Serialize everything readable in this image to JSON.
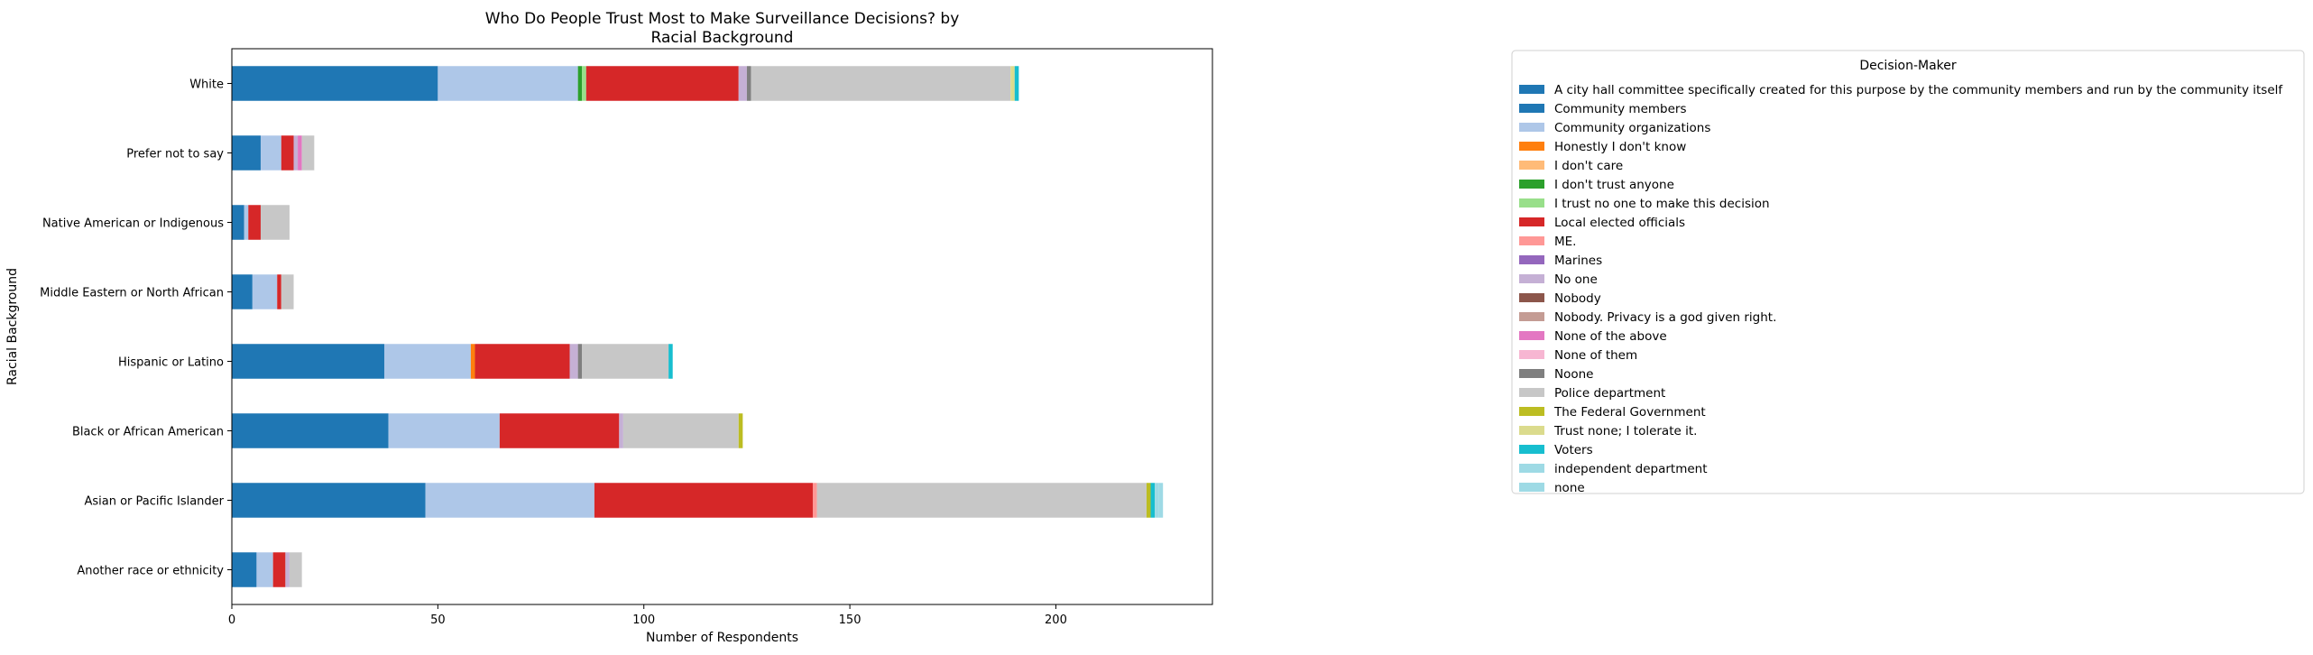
{
  "chart_data": {
    "type": "bar",
    "orientation": "horizontal",
    "stacked": true,
    "title": "Who Do People Trust Most to Make Surveillance Decisions? by\nRacial Background",
    "xlabel": "Number of Respondents",
    "ylabel": "Racial Background",
    "xlim": [
      0,
      238
    ],
    "xticks": [
      0,
      50,
      100,
      150,
      200
    ],
    "grid": false,
    "legend_title": "Decision-Maker",
    "legend_placement": "upper-right-outside",
    "categories": [
      "Another race or ethnicity",
      "Asian or Pacific Islander",
      "Black or African American",
      "Hispanic or Latino",
      "Middle Eastern or North African",
      "Native American or Indigenous",
      "Prefer not to say",
      "White"
    ],
    "series": [
      {
        "name": "A city hall committee specifically created for this purpose by the community members and run by the community itself",
        "color": "#1f77b4",
        "values": [
          0,
          0,
          0,
          0,
          0,
          0,
          0,
          0
        ]
      },
      {
        "name": "Community members",
        "color": "#1f77b4",
        "values": [
          6,
          47,
          38,
          37,
          5,
          3,
          7,
          50
        ]
      },
      {
        "name": "Community organizations",
        "color": "#aec7e8",
        "values": [
          4,
          41,
          27,
          21,
          6,
          1,
          5,
          34
        ]
      },
      {
        "name": "Honestly I don't know",
        "color": "#ff7f0e",
        "values": [
          0,
          0,
          0,
          1,
          0,
          0,
          0,
          0
        ]
      },
      {
        "name": "I don't care",
        "color": "#ffbb78",
        "values": [
          0,
          0,
          0,
          0,
          0,
          0,
          0,
          0
        ]
      },
      {
        "name": "I don't trust anyone",
        "color": "#2ca02c",
        "values": [
          0,
          0,
          0,
          0,
          0,
          0,
          0,
          1
        ]
      },
      {
        "name": "I trust no one to make this decision",
        "color": "#98df8a",
        "values": [
          0,
          0,
          0,
          0,
          0,
          0,
          0,
          1
        ]
      },
      {
        "name": "Local elected officials",
        "color": "#d62728",
        "values": [
          3,
          53,
          29,
          23,
          1,
          3,
          3,
          37
        ]
      },
      {
        "name": "ME.",
        "color": "#ff9896",
        "values": [
          0,
          1,
          0,
          0,
          0,
          0,
          0,
          0
        ]
      },
      {
        "name": "Marines",
        "color": "#9467bd",
        "values": [
          0,
          0,
          0,
          0,
          0,
          0,
          0,
          0
        ]
      },
      {
        "name": "No one",
        "color": "#c5b0d5",
        "values": [
          1,
          0,
          1,
          2,
          0,
          0,
          1,
          2
        ]
      },
      {
        "name": "Nobody",
        "color": "#8c564b",
        "values": [
          0,
          0,
          0,
          0,
          0,
          0,
          0,
          0
        ]
      },
      {
        "name": "Nobody. Privacy is a god given right.",
        "color": "#c49c94",
        "values": [
          0,
          0,
          0,
          0,
          0,
          0,
          0,
          0
        ]
      },
      {
        "name": "None of the above",
        "color": "#e377c2",
        "values": [
          0,
          0,
          0,
          0,
          0,
          0,
          1,
          0
        ]
      },
      {
        "name": "None of them",
        "color": "#f7b6d2",
        "values": [
          0,
          0,
          0,
          0,
          0,
          0,
          0,
          0
        ]
      },
      {
        "name": "Noone",
        "color": "#7f7f7f",
        "values": [
          0,
          0,
          0,
          1,
          0,
          0,
          0,
          1
        ]
      },
      {
        "name": "Police department",
        "color": "#c7c7c7",
        "values": [
          3,
          80,
          28,
          21,
          3,
          7,
          3,
          63
        ]
      },
      {
        "name": "The Federal Government",
        "color": "#bcbd22",
        "values": [
          0,
          1,
          1,
          0,
          0,
          0,
          0,
          0
        ]
      },
      {
        "name": "Trust none; I tolerate it.",
        "color": "#dbdb8d",
        "values": [
          0,
          0,
          0,
          0,
          0,
          0,
          0,
          1
        ]
      },
      {
        "name": "Voters",
        "color": "#17becf",
        "values": [
          0,
          1,
          0,
          1,
          0,
          0,
          0,
          1
        ]
      },
      {
        "name": "independent department",
        "color": "#9edae5",
        "values": [
          0,
          1,
          0,
          0,
          0,
          0,
          0,
          0
        ]
      },
      {
        "name": "none",
        "color": "#9edae5",
        "values": [
          0,
          1,
          0,
          0,
          0,
          0,
          0,
          0
        ]
      }
    ]
  }
}
